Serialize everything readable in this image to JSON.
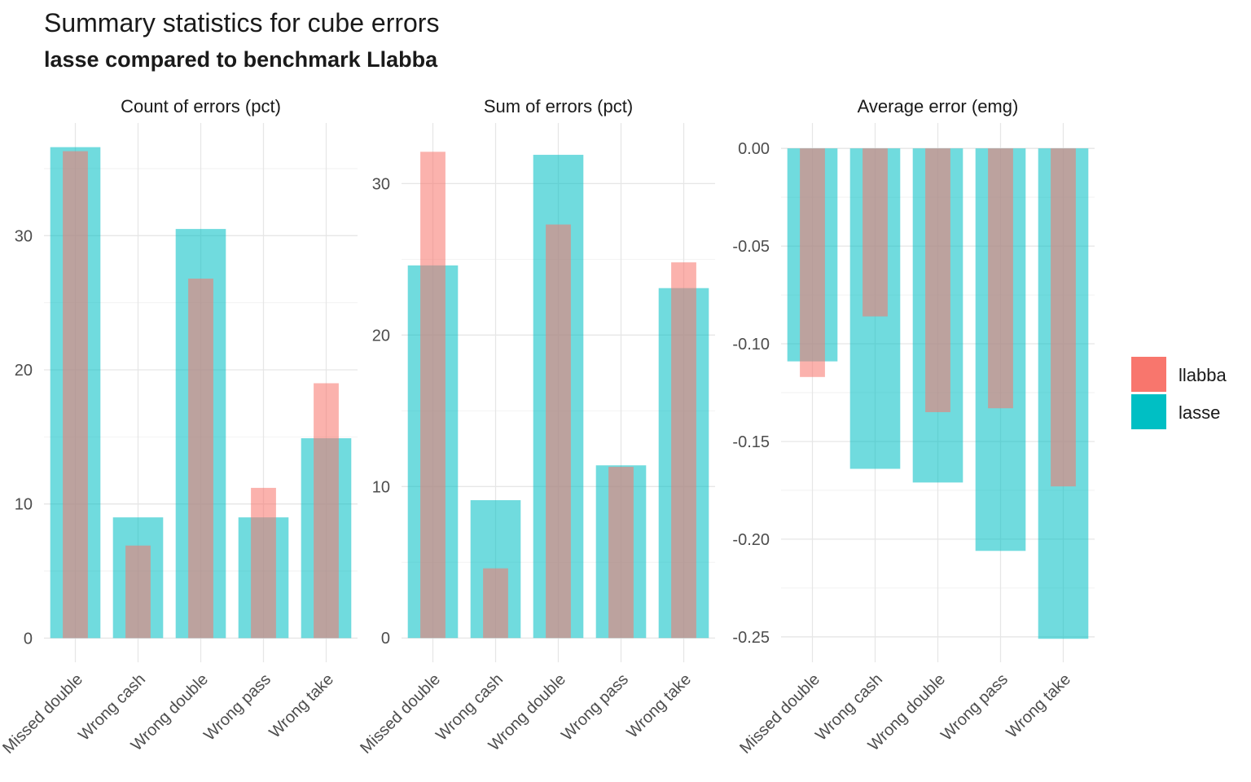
{
  "title": "Summary statistics for cube errors",
  "subtitle": "lasse compared to benchmark Llabba",
  "colors": {
    "llabba": "#F8766D",
    "lasse": "#00BFC4"
  },
  "legend": {
    "placement": "right",
    "items": [
      {
        "key": "llabba",
        "label": "llabba"
      },
      {
        "key": "lasse",
        "label": "lasse"
      }
    ]
  },
  "chart_data": [
    {
      "type": "bar",
      "panel": "Count of errors (pct)",
      "categories": [
        "Missed double",
        "Wrong cash",
        "Wrong double",
        "Wrong pass",
        "Wrong take"
      ],
      "series": [
        {
          "name": "llabba",
          "values": [
            36.3,
            6.9,
            26.8,
            11.2,
            19.0
          ]
        },
        {
          "name": "lasse",
          "values": [
            36.6,
            9.0,
            30.5,
            9.0,
            14.9
          ]
        }
      ],
      "ylim": [
        -1.8,
        38.4
      ],
      "yticks": [
        0,
        10,
        20,
        30
      ]
    },
    {
      "type": "bar",
      "panel": "Sum of errors (pct)",
      "categories": [
        "Missed double",
        "Wrong cash",
        "Wrong double",
        "Wrong pass",
        "Wrong take"
      ],
      "series": [
        {
          "name": "llabba",
          "values": [
            32.1,
            4.6,
            27.3,
            11.3,
            24.8
          ]
        },
        {
          "name": "lasse",
          "values": [
            24.6,
            9.1,
            31.9,
            11.4,
            23.1
          ]
        }
      ],
      "ylim": [
        -1.6,
        34.0
      ],
      "yticks": [
        0,
        10,
        20,
        30
      ]
    },
    {
      "type": "bar",
      "panel": "Average error (emg)",
      "categories": [
        "Missed double",
        "Wrong cash",
        "Wrong double",
        "Wrong pass",
        "Wrong take"
      ],
      "series": [
        {
          "name": "llabba",
          "values": [
            -0.117,
            -0.086,
            -0.135,
            -0.133,
            -0.173
          ]
        },
        {
          "name": "lasse",
          "values": [
            -0.109,
            -0.164,
            -0.171,
            -0.206,
            -0.251
          ]
        }
      ],
      "ylim": [
        -0.263,
        0.013
      ],
      "yticks": [
        0.0,
        -0.05,
        -0.1,
        -0.15,
        -0.2,
        -0.25
      ],
      "ytick_labels": [
        "0.00",
        "-0.05",
        "-0.10",
        "-0.15",
        "-0.20",
        "-0.25"
      ]
    }
  ]
}
